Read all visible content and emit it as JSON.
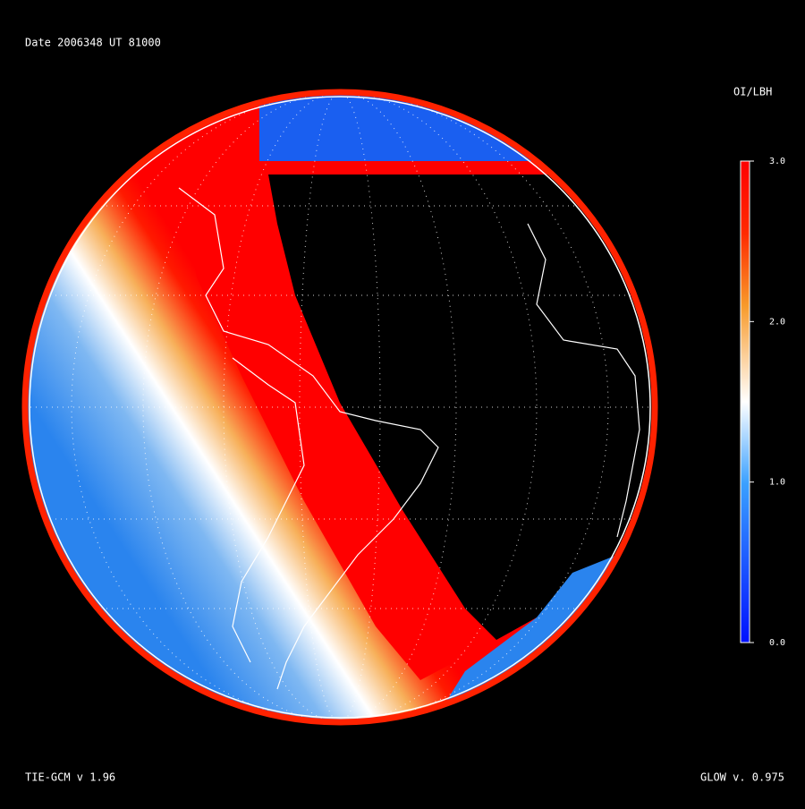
{
  "header": {
    "date": "Date 2006348",
    "ut": "UT 81000"
  },
  "colorbar": {
    "title": "OI/LBH",
    "range": [
      0,
      3
    ],
    "ticks": [
      {
        "value": 0,
        "label": "0.0"
      },
      {
        "value": 1,
        "label": "1.0"
      },
      {
        "value": 2,
        "label": "2.0"
      },
      {
        "value": 3,
        "label": "3.0"
      }
    ]
  },
  "footer": {
    "model": "TIE-GCM v 1.96",
    "glow": "GLOW v. 0.975"
  }
}
